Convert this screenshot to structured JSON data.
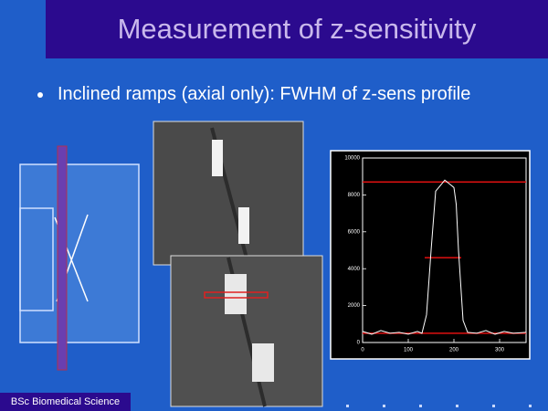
{
  "header": {
    "title": "Measurement of z-sensitivity"
  },
  "bullets": [
    "Inclined ramps (axial only): FWHM of z-sens profile"
  ],
  "footer": {
    "label": "BSc Biomedical Science"
  },
  "profile_plot": {
    "type": "line",
    "xlim": [
      0,
      358
    ],
    "ylim": [
      0,
      10000
    ],
    "xticks": [
      0,
      100,
      200,
      300
    ],
    "yticks": [
      0,
      2000,
      4000,
      6000,
      8000,
      10000
    ],
    "x": [
      0,
      20,
      40,
      60,
      80,
      100,
      120,
      130,
      140,
      150,
      160,
      170,
      180,
      190,
      200,
      205,
      210,
      220,
      230,
      250,
      270,
      290,
      310,
      330,
      358
    ],
    "values": [
      600,
      450,
      650,
      500,
      550,
      450,
      600,
      500,
      1500,
      5000,
      8200,
      8500,
      8800,
      8600,
      8400,
      7500,
      5000,
      1200,
      550,
      500,
      650,
      450,
      600,
      500,
      550
    ],
    "levels": [
      {
        "value": 8700,
        "x": [
          0,
          358
        ]
      },
      {
        "value": 4600,
        "x": [
          136,
          216
        ]
      },
      {
        "value": 500,
        "x": [
          0,
          358
        ]
      }
    ]
  }
}
